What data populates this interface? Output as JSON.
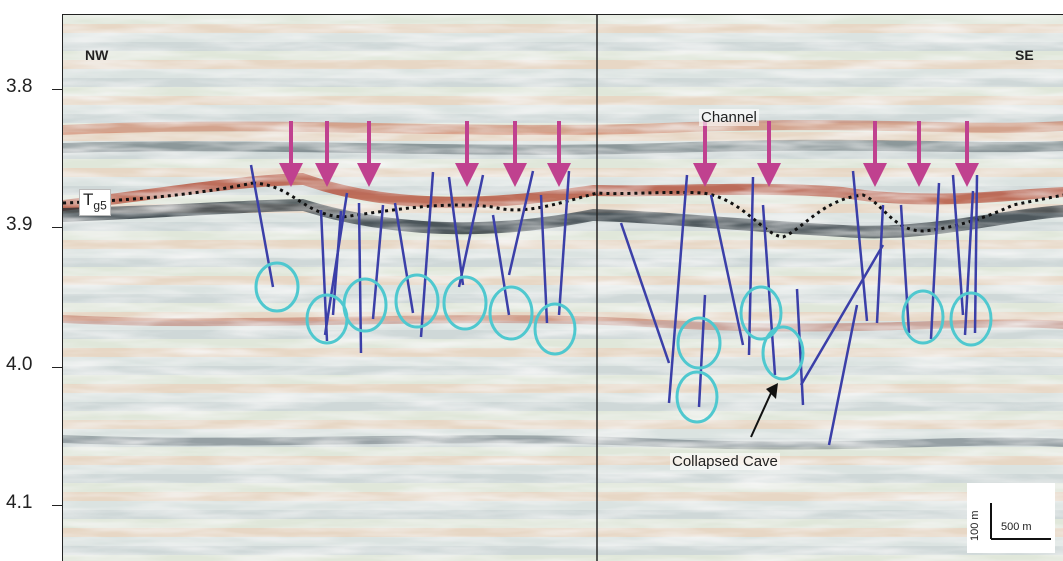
{
  "axis": {
    "ticks": [
      "3.8",
      "3.9",
      "4.0",
      "4.1"
    ]
  },
  "labels": {
    "nw": "NW",
    "se": "SE",
    "horizon": "T",
    "horizon_sub": "g5",
    "channel": "Channel",
    "collapsed_cave": "Collapsed Cave",
    "scale_vertical": "100 m",
    "scale_horizontal": "500 m"
  },
  "colors": {
    "arrow": "#c0418f",
    "fault": "#3b3fa8",
    "circle": "#4fc8cf",
    "horizon_line": "#111111"
  }
}
